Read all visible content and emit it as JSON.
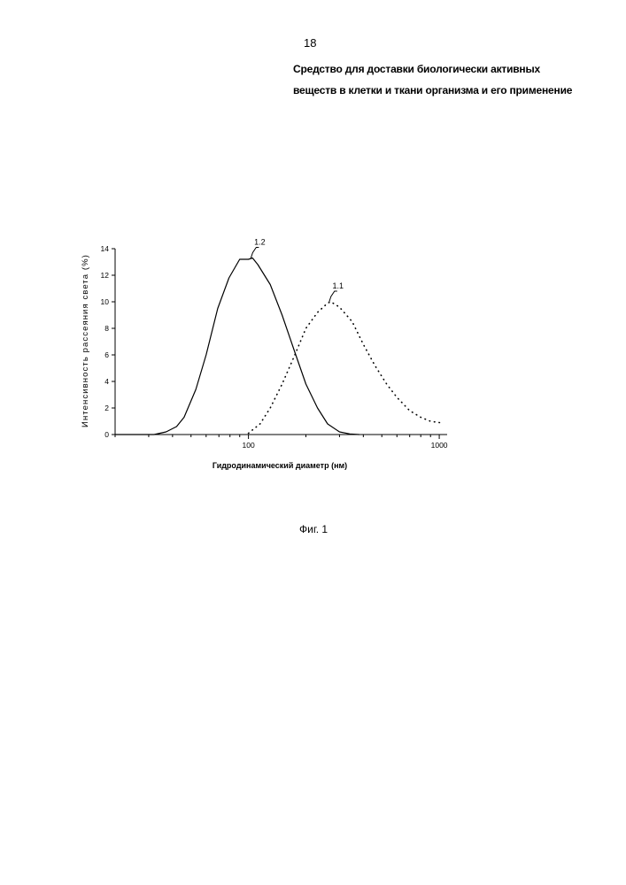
{
  "page": {
    "number": "18",
    "title_line1": "Средство  для доставки биологически активных",
    "title_line2": "веществ в  клетки и ткани организма  и  его применение",
    "figure_caption": "Фиг. 1"
  },
  "chart_data": {
    "type": "line",
    "title": "",
    "xlabel": "Гидродинамический диаметр (нм)",
    "ylabel": "Интенсивность рассеяния света (%)",
    "xscale": "log",
    "xlim": [
      20,
      1100
    ],
    "ylim": [
      0,
      14
    ],
    "xticks": [
      100,
      1000
    ],
    "xtick_labels": [
      "100",
      "1000"
    ],
    "yticks": [
      0,
      2,
      4,
      6,
      8,
      10,
      12,
      14
    ],
    "ytick_labels": [
      "0",
      "2",
      "4",
      "6",
      "8",
      "10",
      "12",
      "14"
    ],
    "grid": false,
    "legend": "none",
    "series": [
      {
        "name": "1.2",
        "style": "solid",
        "x": [
          20,
          32,
          37,
          42,
          46,
          53,
          60,
          69,
          79,
          90,
          100,
          105,
          112,
          130,
          150,
          175,
          200,
          230,
          260,
          300,
          340,
          380
        ],
        "y": [
          0,
          0,
          0.2,
          0.6,
          1.3,
          3.4,
          6.0,
          9.5,
          11.8,
          13.2,
          13.2,
          13.3,
          12.8,
          11.3,
          9.0,
          6.2,
          3.8,
          2.0,
          0.8,
          0.2,
          0.05,
          0
        ]
      },
      {
        "name": "1.1",
        "style": "dotted",
        "x": [
          100,
          115,
          130,
          150,
          175,
          200,
          230,
          260,
          270,
          300,
          350,
          400,
          460,
          530,
          600,
          700,
          800,
          900,
          1000,
          1050
        ],
        "y": [
          0.1,
          0.8,
          2.0,
          3.8,
          6.0,
          8.0,
          9.2,
          9.9,
          10.0,
          9.6,
          8.5,
          6.8,
          5.2,
          3.8,
          2.8,
          1.8,
          1.3,
          1.0,
          0.9,
          0.9
        ]
      }
    ],
    "annotations": [
      {
        "label": "1.2",
        "x": 103,
        "y": 13.3
      },
      {
        "label": "1.1",
        "x": 265,
        "y": 10.0
      }
    ]
  }
}
